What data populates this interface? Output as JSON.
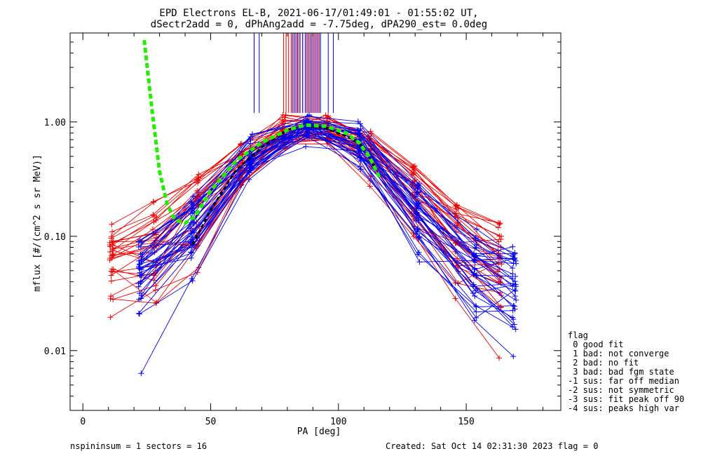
{
  "title_line1": "EPD Electrons EL-B, 2021-06-17/01:49:01 - 01:55:02 UT,",
  "title_line2": "dSectr2add = 0, dPhAng2add = -7.75deg, dPA290_est=   0.0deg",
  "footer_left": "nspininsum =  1  sectors = 16",
  "footer_right": "Created: Sat Oct 14 02:31:30 2023   flag = 0",
  "legend": {
    "title": "flag",
    "items": [
      " 0 good fit",
      " 1 bad: not converge",
      " 2 bad: no fit",
      " 3 bad: bad fgm state",
      "-1 sus: far off median",
      "-2 sus: not symmetric",
      "-3 sus: fit peak off 90",
      "-4 sus: peaks high var"
    ]
  },
  "colors": {
    "red_series": "#ee0000",
    "blue_series": "#0000ee",
    "fit": "#22ee00",
    "median": "#000000"
  },
  "chart_data": {
    "type": "line",
    "xlabel": "PA [deg]",
    "ylabel": "mflux [#/(cm^2 s sr MeV)]",
    "xlim": [
      -5,
      187
    ],
    "ylim": [
      0.003,
      6.0
    ],
    "ylog": true,
    "x_ticks": [
      0,
      50,
      100,
      150
    ],
    "x_tick_labels": [
      "0",
      "50",
      "100",
      "150"
    ],
    "y_ticks": [
      0.01,
      0.1,
      1.0
    ],
    "y_tick_labels": [
      "0.01",
      "0.10",
      "1.00"
    ],
    "pa_red": [
      11.25,
      28.1,
      45.0,
      61.9,
      78.75,
      95.6,
      112.5,
      129.4,
      146.25,
      163.1
    ],
    "pa_blue": [
      22.5,
      42.9,
      65.7,
      87.9,
      108.2,
      131.0,
      153.4,
      168.75
    ],
    "fit_curve": [
      [
        24.0,
        5.2
      ],
      [
        27.0,
        1.3
      ],
      [
        30.0,
        0.37
      ],
      [
        33.0,
        0.19
      ],
      [
        36.0,
        0.14
      ],
      [
        40.0,
        0.13
      ],
      [
        44.0,
        0.15
      ],
      [
        50.0,
        0.25
      ],
      [
        60.0,
        0.46
      ],
      [
        70.0,
        0.66
      ],
      [
        80.0,
        0.85
      ],
      [
        87.0,
        0.94
      ],
      [
        95.0,
        0.92
      ],
      [
        103.0,
        0.8
      ],
      [
        108.0,
        0.66
      ],
      [
        112.0,
        0.5
      ],
      [
        116.0,
        0.33
      ]
    ],
    "median_curve": [
      [
        43.0,
        0.085
      ],
      [
        50.0,
        0.17
      ],
      [
        60.0,
        0.38
      ],
      [
        70.0,
        0.6
      ],
      [
        80.0,
        0.85
      ],
      [
        87.0,
        0.93
      ],
      [
        95.0,
        0.88
      ],
      [
        105.0,
        0.72
      ],
      [
        110.0,
        0.6
      ],
      [
        115.0,
        0.38
      ]
    ],
    "peak_marker_x_red": [
      78.5,
      79.5,
      80.5,
      81.5,
      82.5,
      83.5,
      84.5,
      86.0,
      87.5,
      88.5,
      89.5,
      90.5,
      91.5,
      92.5
    ],
    "peak_marker_x_blue": [
      67.0,
      69.0,
      82.0,
      83.0,
      84.0,
      85.0,
      86.0,
      87.0,
      88.0,
      89.0,
      90.0,
      91.0,
      92.0,
      93.0,
      96.0,
      98.0
    ],
    "peak_marker_y": [
      1.2,
      6.0
    ]
  }
}
